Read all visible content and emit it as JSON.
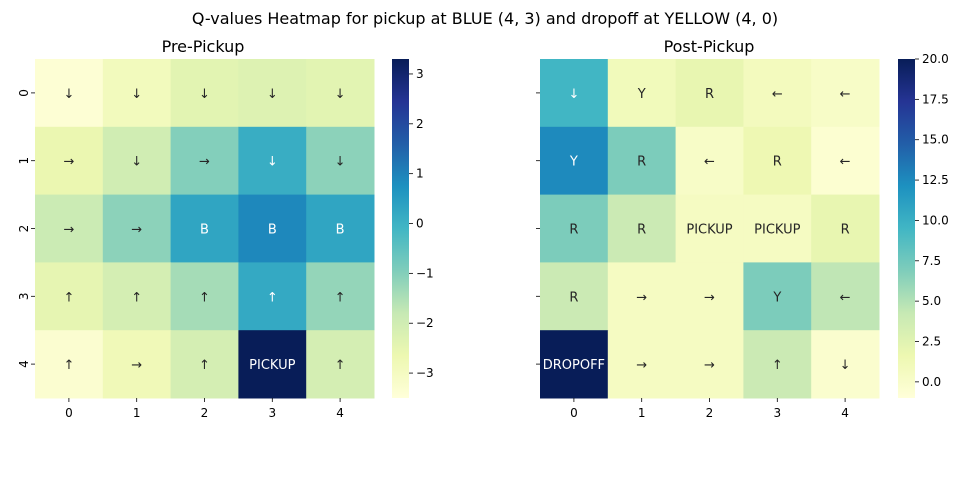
{
  "title": "Q-values Heatmap for pickup at BLUE (4, 3) and dropoff at YELLOW (4, 0)",
  "chart_data": [
    {
      "type": "heatmap",
      "title": "Pre-Pickup",
      "x_ticks": [
        "0",
        "1",
        "2",
        "3",
        "4"
      ],
      "y_ticks": [
        "0",
        "1",
        "2",
        "3",
        "4"
      ],
      "values": [
        [
          -3.4,
          -2.9,
          -2.4,
          -2.3,
          -2.4
        ],
        [
          -2.6,
          -2.0,
          -1.0,
          0.1,
          -1.1
        ],
        [
          -1.9,
          -1.1,
          0.3,
          0.9,
          0.3
        ],
        [
          -2.5,
          -2.1,
          -1.4,
          0.2,
          -1.2
        ],
        [
          -3.3,
          -2.8,
          -2.1,
          3.3,
          -2.1
        ]
      ],
      "labels": [
        [
          "↓",
          "↓",
          "↓",
          "↓",
          "↓"
        ],
        [
          "→",
          "↓",
          "→",
          "↓",
          "↓"
        ],
        [
          "→",
          "→",
          "B",
          "B",
          "B"
        ],
        [
          "↑",
          "↑",
          "↑",
          "↑",
          "↑"
        ],
        [
          "↑",
          "→",
          "↑",
          "PICKUP",
          "↑"
        ]
      ],
      "colorbar": {
        "min": -3.5,
        "max": 3.3,
        "ticks": [
          -3,
          -2,
          -1,
          0,
          1,
          2,
          3
        ],
        "tick_labels": [
          "−3",
          "−2",
          "−1",
          "0",
          "1",
          "2",
          "3"
        ]
      }
    },
    {
      "type": "heatmap",
      "title": "Post-Pickup",
      "x_ticks": [
        "0",
        "1",
        "2",
        "3",
        "4"
      ],
      "y_ticks": [
        "0",
        "1",
        "2",
        "3",
        "4"
      ],
      "values": [
        [
          9.5,
          1.0,
          2.0,
          0.8,
          0.2
        ],
        [
          12.5,
          7.0,
          0.2,
          1.5,
          -0.5
        ],
        [
          7.0,
          4.0,
          0.5,
          0.5,
          2.0
        ],
        [
          4.0,
          0.5,
          0.5,
          7.0,
          4.5
        ],
        [
          20.0,
          0.5,
          0.5,
          4.0,
          -0.3
        ]
      ],
      "labels": [
        [
          "↓",
          "Y",
          "R",
          "←",
          "←"
        ],
        [
          "Y",
          "R",
          "←",
          "R",
          "←"
        ],
        [
          "R",
          "R",
          "PICKUP",
          "PICKUP",
          "R"
        ],
        [
          "R",
          "→",
          "→",
          "Y",
          "←"
        ],
        [
          "DROPOFF",
          "→",
          "→",
          "↑",
          "↓"
        ]
      ],
      "colorbar": {
        "min": -1.0,
        "max": 20.0,
        "ticks": [
          0,
          2.5,
          5,
          7.5,
          10,
          12.5,
          15,
          17.5,
          20
        ],
        "tick_labels": [
          "0.0",
          "2.5",
          "5.0",
          "7.5",
          "10.0",
          "12.5",
          "15.0",
          "17.5",
          "20.0"
        ]
      }
    }
  ]
}
